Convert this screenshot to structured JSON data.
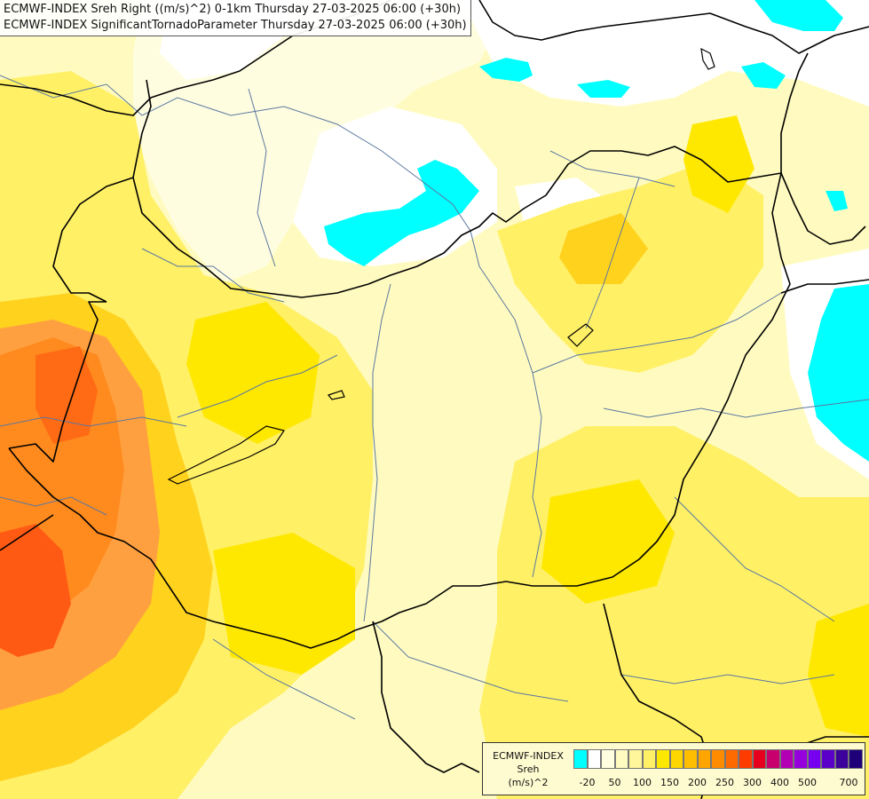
{
  "header": {
    "line1": "ECMWF-INDEX Sreh Right ((m/s)^2) 0-1km Thursday 27-03-2025 06:00 (+30h)",
    "line2": "ECMWF-INDEX SignificantTornadoParameter Thursday 27-03-2025 06:00 (+30h)"
  },
  "legend": {
    "model": "ECMWF-INDEX",
    "parameter": "Sreh",
    "unit": "(m/s)^2",
    "colors": [
      "#00ffff",
      "#ffffff",
      "#ffffe0",
      "#fffbc0",
      "#fff59b",
      "#fff066",
      "#ffe800",
      "#ffd700",
      "#ffbf00",
      "#ffa500",
      "#ff8c00",
      "#ff6a00",
      "#ff3c00",
      "#e6001e",
      "#c8006e",
      "#b400b4",
      "#9600dc",
      "#7800f0",
      "#5a00c8",
      "#3c009b",
      "#1e0078"
    ],
    "ticks": [
      "-20",
      "50",
      "100",
      "150",
      "200",
      "250",
      "300",
      "400",
      "500",
      "700"
    ]
  },
  "map": {
    "base_color": "#fffbc0",
    "accent_colors": {
      "cyan": "#00ffff",
      "white": "#ffffff",
      "pale": "#fffde0",
      "yellow": "#fff066",
      "gold": "#ffe800",
      "amber": "#ffd21e",
      "orange": "#ffa040",
      "dark_orange": "#ff8a1e",
      "red_orange": "#ff5a14"
    }
  }
}
